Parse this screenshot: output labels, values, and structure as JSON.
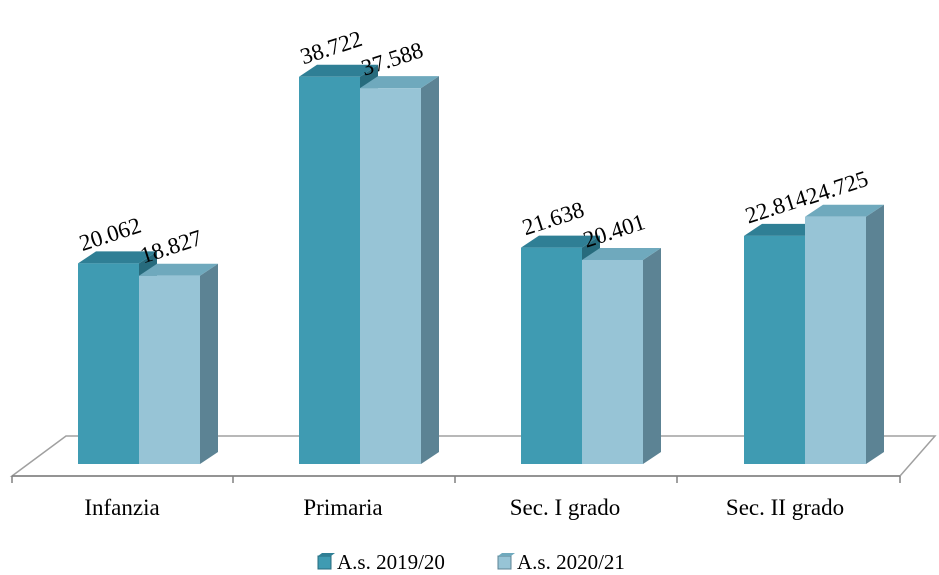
{
  "chart_data": {
    "type": "bar",
    "categories": [
      "Infanzia",
      "Primaria",
      "Sec. I grado",
      "Sec. II grado"
    ],
    "series": [
      {
        "name": "A.s. 2019/20",
        "values": [
          20.062,
          38.722,
          21.638,
          22.814
        ],
        "labels": [
          "20.062",
          "38.722",
          "21.638",
          "22.814"
        ]
      },
      {
        "name": "A.s. 2020/21",
        "values": [
          18.827,
          37.588,
          20.401,
          24.725
        ],
        "labels": [
          "18.827",
          "37.588",
          "20.401",
          "24.725"
        ]
      }
    ],
    "ylim": [
      0,
      40
    ],
    "legend_position": "bottom",
    "grid": false,
    "colors": {
      "s0_front": "#3f9bb2",
      "s0_top": "#2f7f95",
      "s0_side": "#276b7d",
      "s1_front": "#97c4d6",
      "s1_top": "#6fa9bd",
      "s1_side": "#5c8394",
      "floor": "#ffffff",
      "floor_edge": "#a0a0a0",
      "axis": "#808080"
    }
  }
}
